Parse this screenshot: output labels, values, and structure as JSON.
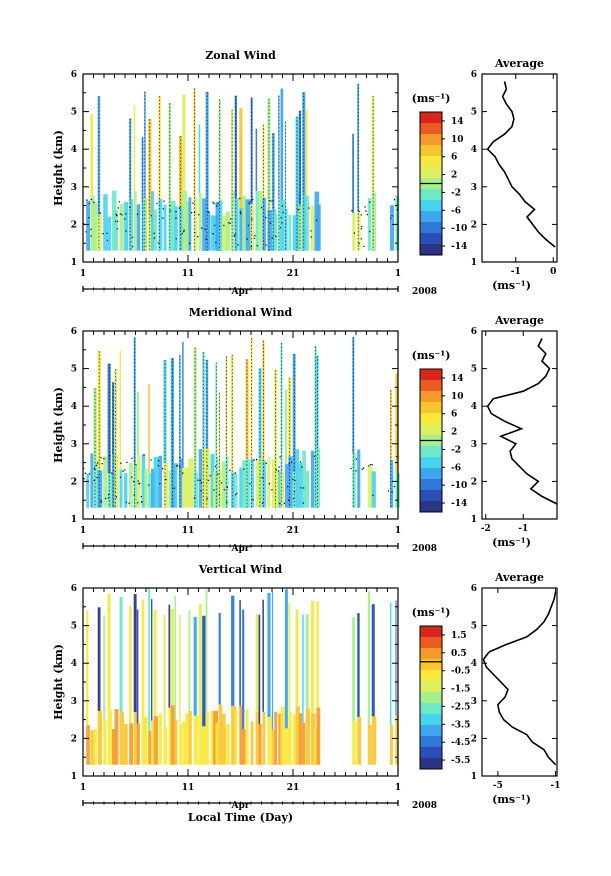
{
  "chart_data": [
    {
      "type": "heatmap",
      "title": "Zonal Wind",
      "ylabel": "Height (km)",
      "xlabel": "",
      "x_tick_labels": [
        "1",
        "11",
        "21",
        "1"
      ],
      "y_tick_labels": [
        "1",
        "2",
        "3",
        "4",
        "5",
        "6"
      ],
      "ylim": [
        1,
        6
      ],
      "month_label": "Apr",
      "year_label": "2008",
      "colorbar": {
        "unit": "(ms⁻¹)",
        "tick_labels": [
          "14",
          "10",
          "6",
          "2",
          "-2",
          "-6",
          "-10",
          "-14"
        ],
        "range": [
          -16,
          16
        ]
      },
      "average": {
        "title": "Average",
        "xlabel": "(ms⁻¹)",
        "x_tick_labels": [
          "-1",
          "0"
        ],
        "xlim": [
          -1.9,
          0.1
        ],
        "y_tick_labels": [
          "1",
          "2",
          "3",
          "4",
          "5",
          "6"
        ],
        "profile": [
          [
            1.4,
            0.05
          ],
          [
            1.6,
            -0.2
          ],
          [
            1.8,
            -0.4
          ],
          [
            2.0,
            -0.55
          ],
          [
            2.2,
            -0.7
          ],
          [
            2.4,
            -0.5
          ],
          [
            2.6,
            -0.75
          ],
          [
            2.8,
            -0.9
          ],
          [
            3.0,
            -1.1
          ],
          [
            3.2,
            -1.2
          ],
          [
            3.4,
            -1.3
          ],
          [
            3.6,
            -1.45
          ],
          [
            3.8,
            -1.55
          ],
          [
            4.0,
            -1.75
          ],
          [
            4.2,
            -1.6
          ],
          [
            4.4,
            -1.3
          ],
          [
            4.6,
            -1.1
          ],
          [
            4.8,
            -1.05
          ],
          [
            5.0,
            -1.1
          ],
          [
            5.2,
            -1.25
          ],
          [
            5.4,
            -1.35
          ],
          [
            5.6,
            -1.25
          ],
          [
            5.8,
            -1.3
          ]
        ]
      }
    },
    {
      "type": "heatmap",
      "title": "Meridional Wind",
      "ylabel": "Height (km)",
      "xlabel": "",
      "x_tick_labels": [
        "1",
        "11",
        "21",
        "1"
      ],
      "y_tick_labels": [
        "1",
        "2",
        "3",
        "4",
        "5",
        "6"
      ],
      "ylim": [
        1,
        6
      ],
      "month_label": "Apr",
      "year_label": "2008",
      "colorbar": {
        "unit": "(ms⁻¹)",
        "tick_labels": [
          "14",
          "10",
          "6",
          "2",
          "-2",
          "-6",
          "-10",
          "-14"
        ],
        "range": [
          -16,
          16
        ]
      },
      "average": {
        "title": "Average",
        "xlabel": "(ms⁻¹)",
        "x_tick_labels": [
          "-2",
          "-1"
        ],
        "xlim": [
          -2.1,
          -0.1
        ],
        "y_tick_labels": [
          "1",
          "2",
          "3",
          "4",
          "5",
          "6"
        ],
        "profile": [
          [
            1.4,
            -0.1
          ],
          [
            1.6,
            -0.5
          ],
          [
            1.8,
            -0.8
          ],
          [
            2.0,
            -0.6
          ],
          [
            2.2,
            -0.9
          ],
          [
            2.4,
            -1.1
          ],
          [
            2.6,
            -1.3
          ],
          [
            2.8,
            -1.35
          ],
          [
            3.0,
            -1.2
          ],
          [
            3.2,
            -1.6
          ],
          [
            3.4,
            -1.05
          ],
          [
            3.6,
            -1.5
          ],
          [
            3.8,
            -1.85
          ],
          [
            4.0,
            -1.95
          ],
          [
            4.2,
            -1.8
          ],
          [
            4.4,
            -1.0
          ],
          [
            4.6,
            -0.6
          ],
          [
            4.8,
            -0.4
          ],
          [
            5.0,
            -0.3
          ],
          [
            5.2,
            -0.5
          ],
          [
            5.4,
            -0.4
          ],
          [
            5.6,
            -0.6
          ],
          [
            5.8,
            -0.5
          ]
        ]
      }
    },
    {
      "type": "heatmap",
      "title": "Vertical Wind",
      "ylabel": "Height (km)",
      "xlabel": "Local Time (Day)",
      "x_tick_labels": [
        "1",
        "11",
        "21",
        "1"
      ],
      "y_tick_labels": [
        "1",
        "2",
        "3",
        "4",
        "5",
        "6"
      ],
      "ylim": [
        1,
        6
      ],
      "month_label": "Apr",
      "year_label": "2008",
      "colorbar": {
        "unit": "(ms⁻¹)",
        "tick_labels": [
          "1.5",
          "0.5",
          "-0.5",
          "-1.5",
          "-2.5",
          "-3.5",
          "-4.5",
          "-5.5"
        ],
        "range": [
          -6,
          2
        ]
      },
      "average": {
        "title": "Average",
        "xlabel": "(ms⁻¹)",
        "x_tick_labels": [
          "-5",
          "-1"
        ],
        "xlim": [
          -6.1,
          -0.9
        ],
        "y_tick_labels": [
          "1",
          "2",
          "3",
          "4",
          "5",
          "6"
        ],
        "profile": [
          [
            1.3,
            -1.0
          ],
          [
            1.5,
            -1.5
          ],
          [
            1.7,
            -1.8
          ],
          [
            1.9,
            -2.6
          ],
          [
            2.1,
            -3.0
          ],
          [
            2.3,
            -4.0
          ],
          [
            2.5,
            -4.6
          ],
          [
            2.7,
            -4.9
          ],
          [
            2.9,
            -5.0
          ],
          [
            3.1,
            -4.5
          ],
          [
            3.3,
            -4.3
          ],
          [
            3.5,
            -4.8
          ],
          [
            3.7,
            -5.3
          ],
          [
            3.9,
            -5.8
          ],
          [
            4.1,
            -6.0
          ],
          [
            4.3,
            -5.6
          ],
          [
            4.5,
            -4.4
          ],
          [
            4.7,
            -3.0
          ],
          [
            4.9,
            -2.3
          ],
          [
            5.1,
            -1.8
          ],
          [
            5.3,
            -1.5
          ],
          [
            5.5,
            -1.3
          ],
          [
            5.7,
            -1.1
          ],
          [
            5.9,
            -1.0
          ]
        ]
      }
    }
  ]
}
